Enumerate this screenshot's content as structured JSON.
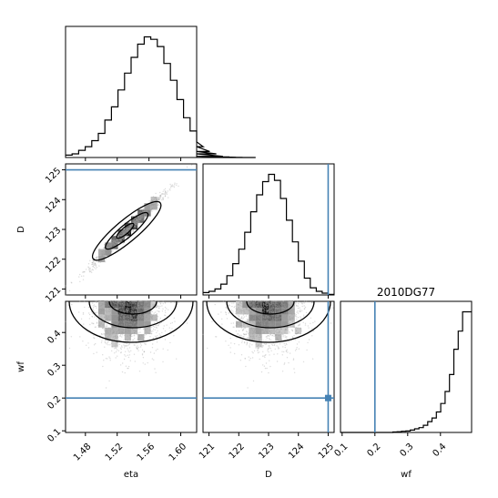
{
  "chart_data": {
    "type": "corner",
    "title": "2010DG77",
    "params": [
      {
        "key": "eta",
        "label": "eta",
        "range": [
          1.455,
          1.62
        ],
        "ticks": [
          1.48,
          1.52,
          1.56,
          1.6
        ],
        "tick_labels": [
          "1.48",
          "1.52",
          "1.56",
          "1.60"
        ]
      },
      {
        "key": "D",
        "label": "D",
        "range": [
          120.8,
          125.2
        ],
        "ticks": [
          121,
          122,
          123,
          124,
          125
        ],
        "tick_labels": [
          "121",
          "122",
          "123",
          "124",
          "125"
        ]
      },
      {
        "key": "wf",
        "label": "wf",
        "range": [
          0.095,
          0.495
        ],
        "ticks": [
          0.1,
          0.2,
          0.3,
          0.4
        ],
        "tick_labels": [
          "0.1",
          "0.2",
          "0.3",
          "0.4"
        ]
      }
    ],
    "truths": {
      "D": 125.0,
      "wf": 0.2
    },
    "hist_eta": {
      "edges_start": 1.455,
      "bin_width": 0.00825,
      "counts": [
        0.02,
        0.03,
        0.06,
        0.09,
        0.14,
        0.2,
        0.31,
        0.42,
        0.56,
        0.7,
        0.83,
        0.94,
        1.0,
        0.98,
        0.92,
        0.78,
        0.64,
        0.48,
        0.33,
        0.22,
        0.13,
        0.09,
        0.05,
        0.03,
        0.01,
        0.005,
        0.002,
        0.001,
        0,
        0
      ]
    },
    "hist_D": {
      "edges_start": 120.8,
      "bin_width": 0.2,
      "counts": [
        0.02,
        0.03,
        0.05,
        0.09,
        0.16,
        0.26,
        0.38,
        0.52,
        0.69,
        0.83,
        0.94,
        1.0,
        0.95,
        0.8,
        0.62,
        0.44,
        0.28,
        0.14,
        0.06,
        0.03,
        0.015,
        0.005
      ]
    },
    "hist_wf": {
      "edges_start": 0.095,
      "bin_width": 0.0133,
      "counts": [
        0,
        0,
        0,
        0,
        0,
        0,
        0,
        0,
        0,
        0,
        0,
        0,
        0.004,
        0.006,
        0.01,
        0.012,
        0.02,
        0.03,
        0.04,
        0.06,
        0.09,
        0.12,
        0.17,
        0.24,
        0.34,
        0.48,
        0.69,
        0.84,
        1.0,
        1.0
      ]
    }
  }
}
